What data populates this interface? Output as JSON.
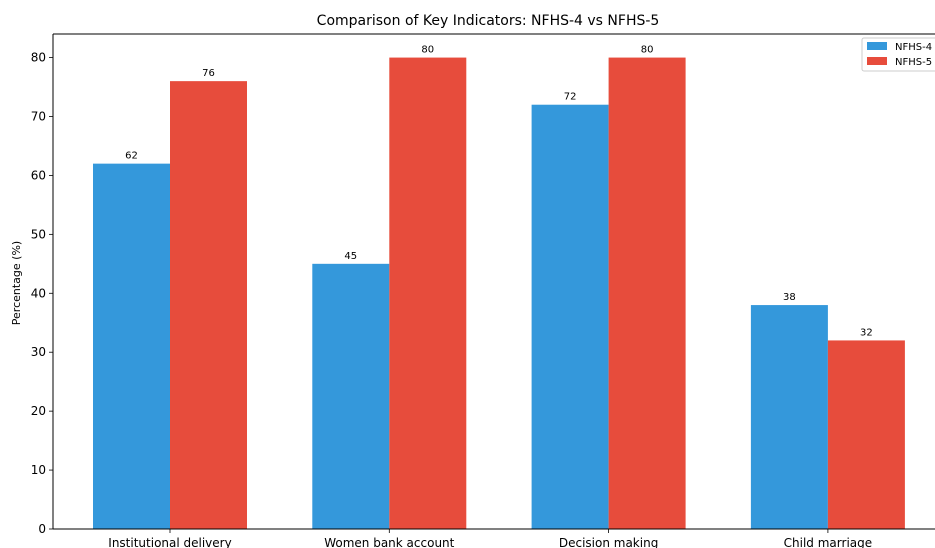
{
  "chart_data": {
    "type": "bar",
    "title": "Comparison of Key Indicators: NFHS-4 vs NFHS-5",
    "xlabel": "",
    "ylabel": "Percentage (%)",
    "ylim": [
      0,
      84
    ],
    "yticks": [
      0,
      10,
      20,
      30,
      40,
      50,
      60,
      70,
      80
    ],
    "categories": [
      "Institutional delivery",
      "Women bank account",
      "Decision making",
      "Child marriage"
    ],
    "series": [
      {
        "name": "NFHS-4",
        "values": [
          62,
          45,
          72,
          38
        ],
        "color": "#3498db"
      },
      {
        "name": "NFHS-5",
        "values": [
          76,
          80,
          80,
          32
        ],
        "color": "#e74c3c"
      }
    ],
    "grid": false,
    "legend_position": "top-right"
  }
}
